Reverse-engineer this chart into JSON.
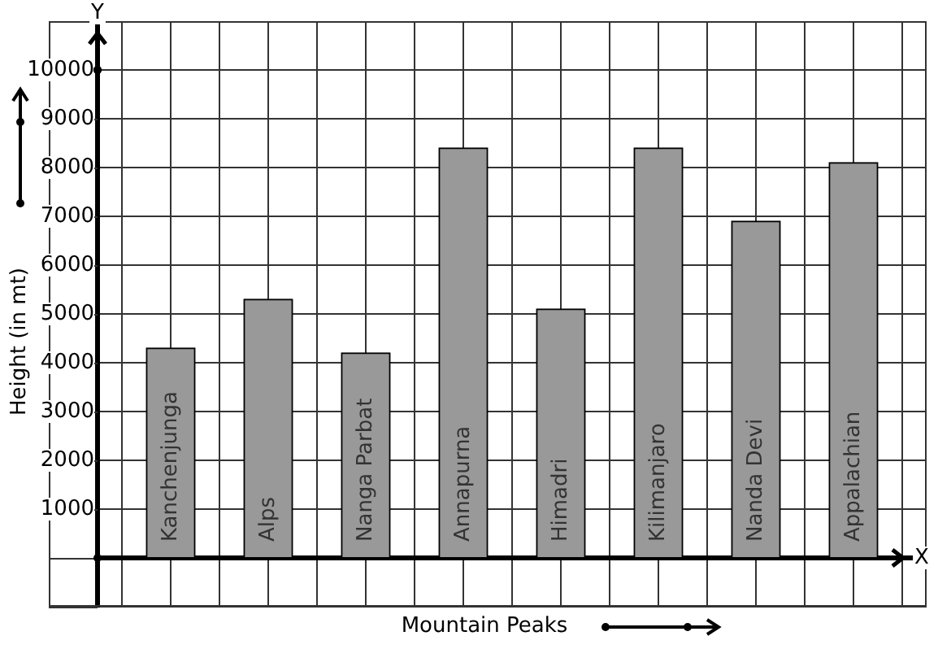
{
  "chart_data": {
    "type": "bar",
    "xlabel": "Mountain Peaks",
    "ylabel": "Height (in mt)",
    "categories": [
      "Kanchenjunga",
      "Alps",
      "Nanga Parbat",
      "Annapurna",
      "Himadri",
      "Kilimanjaro",
      "Nanda Devi",
      "Appalachian"
    ],
    "values": [
      4300,
      5300,
      4200,
      8400,
      5100,
      8400,
      6900,
      8100
    ],
    "color": "#999999",
    "ylim": [
      -1000,
      11000
    ],
    "yticks": [
      {
        "value": 0,
        "label": null
      },
      1000,
      2000,
      3000,
      4000,
      5000,
      6000,
      7000,
      8000,
      9000,
      10000
    ],
    "grid": true,
    "tick_labels": "y",
    "annotations": [
      "Y",
      "X"
    ]
  }
}
